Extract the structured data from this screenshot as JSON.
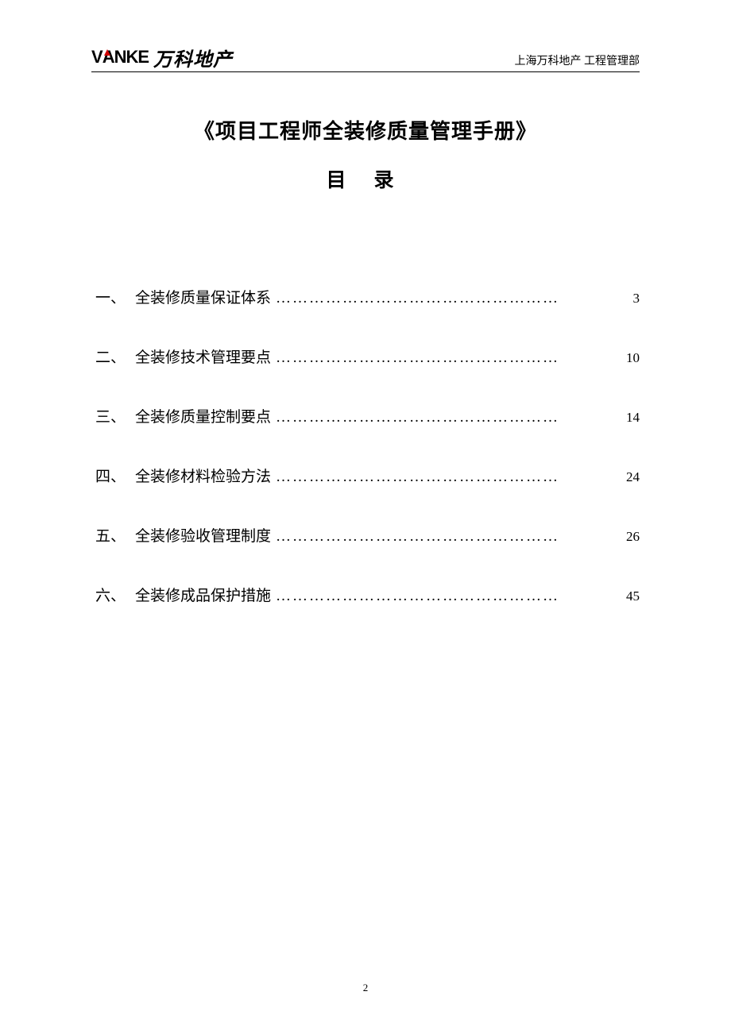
{
  "header": {
    "logo_en": "VANKE",
    "logo_cn": "万科地产",
    "right_text": "上海万科地产 工程管理部"
  },
  "document": {
    "title": "《项目工程师全装修质量管理手册》",
    "toc_heading": "目 录"
  },
  "toc": {
    "items": [
      {
        "number": "一、",
        "title": "全装修质量保证体系",
        "page": "3"
      },
      {
        "number": "二、",
        "title": "全装修技术管理要点",
        "page": "10"
      },
      {
        "number": "三、",
        "title": "全装修质量控制要点",
        "page": "14"
      },
      {
        "number": "四、",
        "title": "全装修材料检验方法",
        "page": "24"
      },
      {
        "number": "五、",
        "title": "全装修验收管理制度",
        "page": "26"
      },
      {
        "number": "六、",
        "title": "全装修成品保护措施",
        "page": "45"
      }
    ],
    "dots": "……………………………………………"
  },
  "page_number": "2",
  "colors": {
    "background": "#ffffff",
    "text": "#000000",
    "accent_red": "#d00000",
    "border": "#000000"
  },
  "typography": {
    "title_fontsize": 26,
    "toc_heading_fontsize": 25,
    "toc_item_fontsize": 19,
    "header_right_fontsize": 14,
    "page_number_fontsize": 13
  }
}
